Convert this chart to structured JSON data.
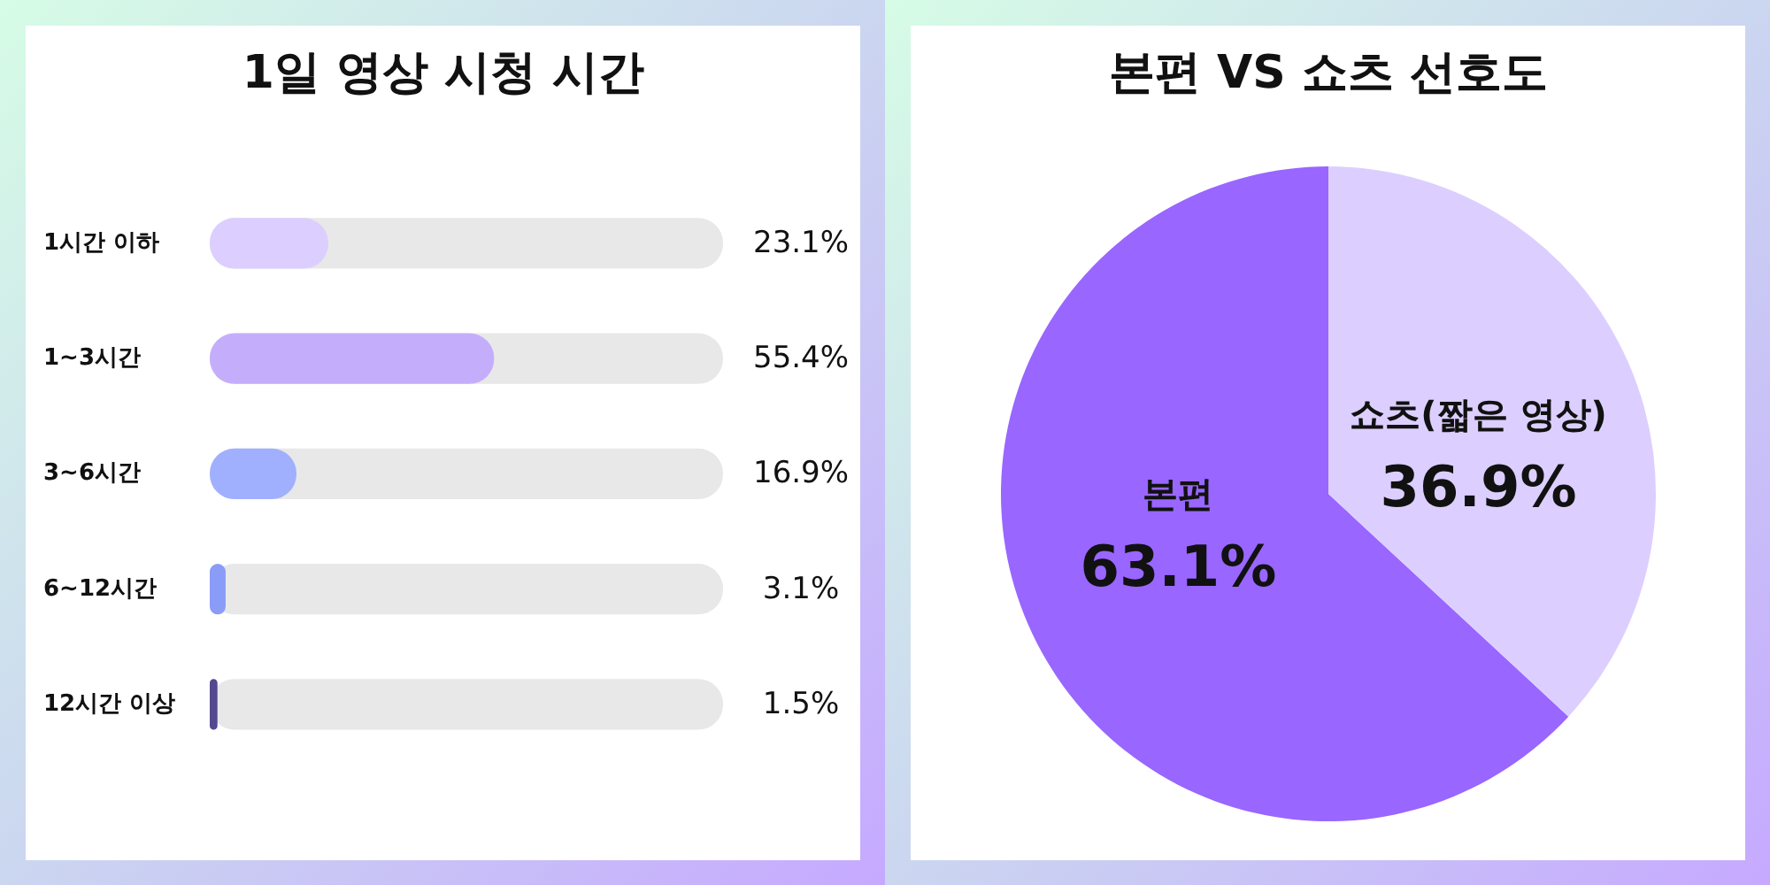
{
  "chart_data": [
    {
      "type": "bar",
      "orientation": "horizontal",
      "title": "1일 영상 시청 시간",
      "categories": [
        "1시간 이하",
        "1~3시간",
        "3~6시간",
        "6~12시간",
        "12시간 이상"
      ],
      "values": [
        23.1,
        55.4,
        16.9,
        3.1,
        1.5
      ],
      "colors": [
        "#dccfff",
        "#c4aefc",
        "#a0b0ff",
        "#8a9cf8",
        "#54488f"
      ],
      "value_labels": [
        "23.1%",
        "55.4%",
        "16.9%",
        "3.1%",
        "1.5%"
      ],
      "xlim": [
        0,
        100
      ],
      "tick_labels": false
    },
    {
      "type": "pie",
      "title": "본편 VS 쇼츠 선호도",
      "categories": [
        "본편",
        "쇼츠(짧은 영상)"
      ],
      "values": [
        63.1,
        36.9
      ],
      "colors": [
        "#9966ff",
        "#dccfff"
      ],
      "value_labels": [
        "63.1%",
        "36.9%"
      ]
    }
  ]
}
